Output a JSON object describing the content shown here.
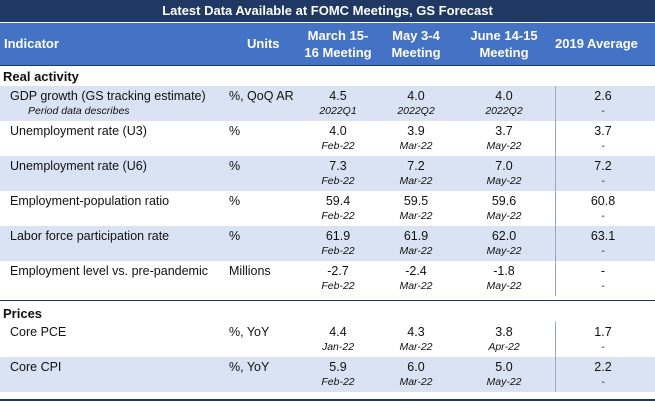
{
  "title": "Latest Data Available at FOMC Meetings, GS Forecast",
  "header": {
    "indicator": "Indicator",
    "units": "Units",
    "meetings": [
      [
        "March 15-",
        "16 Meeting"
      ],
      [
        "May 3-4",
        "Meeting"
      ],
      [
        "June 14-15",
        "Meeting"
      ]
    ],
    "avg2019": "2019 Average"
  },
  "sections": {
    "real": "Real activity",
    "prices": "Prices"
  },
  "note": "Period data describes",
  "rows": [
    {
      "indicator": "GDP growth (GS tracking estimate)",
      "units": "%, QoQ AR",
      "values": [
        "4.5",
        "4.0",
        "4.0"
      ],
      "periods": [
        "2022Q1",
        "2022Q2",
        "2022Q2"
      ],
      "avg": "2.6",
      "avg_period": "-"
    },
    {
      "indicator": "Unemployment rate (U3)",
      "units": "%",
      "values": [
        "4.0",
        "3.9",
        "3.7"
      ],
      "periods": [
        "Feb-22",
        "Mar-22",
        "May-22"
      ],
      "avg": "3.7",
      "avg_period": "-"
    },
    {
      "indicator": "Unemployment rate (U6)",
      "units": "%",
      "values": [
        "7.3",
        "7.2",
        "7.0"
      ],
      "periods": [
        "Feb-22",
        "Mar-22",
        "May-22"
      ],
      "avg": "7.2",
      "avg_period": "-"
    },
    {
      "indicator": "Employment-population ratio",
      "units": "%",
      "values": [
        "59.4",
        "59.5",
        "59.6"
      ],
      "periods": [
        "Feb-22",
        "Mar-22",
        "May-22"
      ],
      "avg": "60.8",
      "avg_period": "-"
    },
    {
      "indicator": "Labor force participation rate",
      "units": "%",
      "values": [
        "61.9",
        "61.9",
        "62.0"
      ],
      "periods": [
        "Feb-22",
        "Mar-22",
        "May-22"
      ],
      "avg": "63.1",
      "avg_period": "-"
    },
    {
      "indicator": "Employment level vs. pre-pandemic",
      "units": "Millions",
      "values": [
        "-2.7",
        "-2.4",
        "-1.8"
      ],
      "periods": [
        "Feb-22",
        "Mar-22",
        "May-22"
      ],
      "avg": "-",
      "avg_period": "-"
    },
    {
      "indicator": "Core PCE",
      "units": "%, YoY",
      "values": [
        "4.4",
        "4.3",
        "3.8"
      ],
      "periods": [
        "Jan-22",
        "Mar-22",
        "Apr-22"
      ],
      "avg": "1.7",
      "avg_period": "-"
    },
    {
      "indicator": "Core CPI",
      "units": "%, YoY",
      "values": [
        "5.9",
        "6.0",
        "5.0"
      ],
      "periods": [
        "Feb-22",
        "Mar-22",
        "May-22"
      ],
      "avg": "2.2",
      "avg_period": "-"
    }
  ]
}
